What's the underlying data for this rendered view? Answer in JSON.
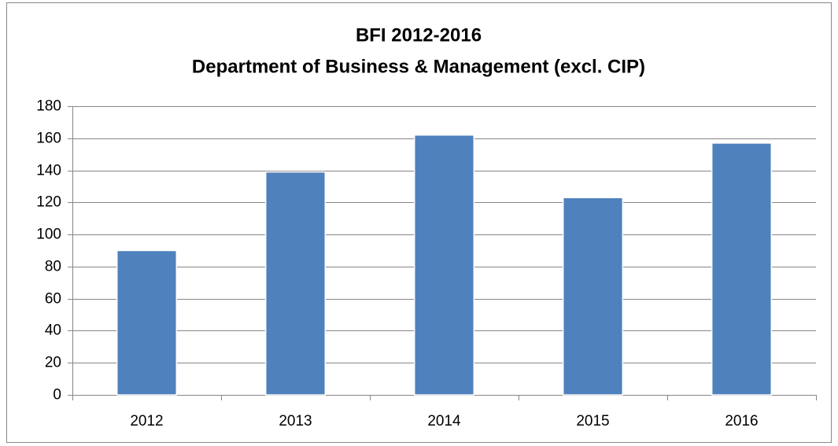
{
  "chart_data": {
    "type": "bar",
    "title": [
      "BFI 2012-2016",
      "Department of Business & Management (excl. CIP)"
    ],
    "categories": [
      "2012",
      "2013",
      "2014",
      "2015",
      "2016"
    ],
    "values": [
      90,
      139,
      162,
      123,
      157
    ],
    "color": "#4f81bd",
    "ylim": [
      0,
      180
    ],
    "yticks": [
      0,
      20,
      40,
      60,
      80,
      100,
      120,
      140,
      160,
      180
    ],
    "grid": true
  }
}
